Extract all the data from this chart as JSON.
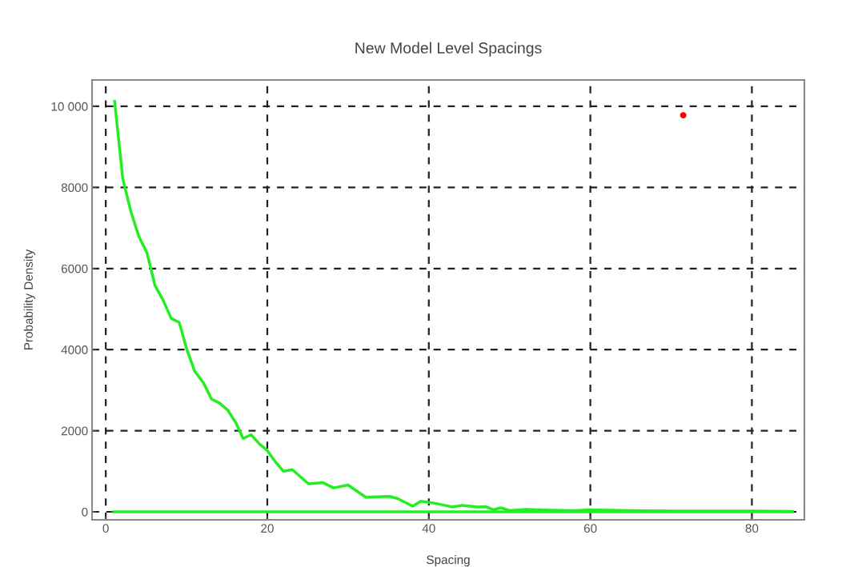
{
  "chart_data": {
    "type": "line",
    "title": "New Model Level Spacings",
    "xlabel": "Spacing",
    "ylabel": "Probability Density",
    "xlim": [
      -1.7,
      86.5
    ],
    "ylim": [
      -197,
      10650
    ],
    "xticks": [
      0,
      20,
      40,
      60,
      80
    ],
    "yticks": [
      0,
      2000,
      4000,
      6000,
      8000,
      {
        "value": 10000,
        "label": "10 000"
      }
    ],
    "grid": true,
    "line_style": "solid",
    "marker": "none",
    "series": [
      {
        "color": "#22ee22",
        "x": [
          1.1,
          2.1,
          3.1,
          4.1,
          5.1,
          6.1,
          7.1,
          8.1,
          9.1,
          10,
          11,
          12.1,
          13.1,
          14.1,
          15.1,
          16.1,
          17,
          18,
          19,
          20,
          21.1,
          22,
          23.1,
          25.1,
          26.9,
          28.2,
          30,
          32.2,
          35.1,
          36.1,
          38,
          39,
          40.8,
          42.9,
          44.1,
          46.1,
          47,
          48,
          48.9,
          50,
          52,
          55,
          58,
          60,
          62,
          65,
          70,
          75,
          80,
          85
        ],
        "values": [
          10120,
          8220,
          7410,
          6790,
          6390,
          5580,
          5220,
          4770,
          4670,
          4030,
          3470,
          3180,
          2780,
          2680,
          2510,
          2200,
          1810,
          1900,
          1680,
          1510,
          1210,
          1000,
          1040,
          690,
          720,
          590,
          660,
          360,
          380,
          330,
          140,
          260,
          210,
          120,
          160,
          120,
          130,
          50,
          100,
          30,
          60,
          40,
          30,
          50,
          40,
          30,
          20,
          20,
          20,
          10
        ]
      },
      {
        "color": "#22ee22",
        "x": [
          1,
          85
        ],
        "values": [
          0,
          0
        ]
      },
      {
        "type": "scatter",
        "color": "#ff0000",
        "marker": "circle",
        "x": [
          71.5
        ],
        "values": [
          9780
        ]
      }
    ]
  }
}
